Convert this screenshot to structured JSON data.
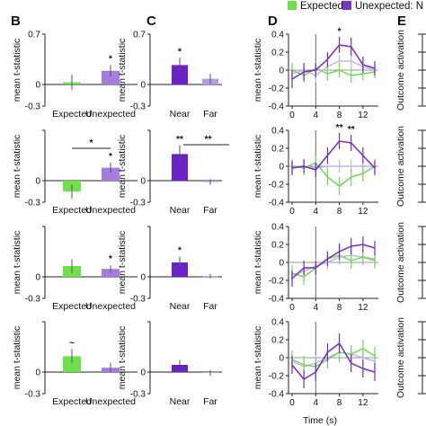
{
  "panel_letters": {
    "B": "B",
    "C": "C",
    "D": "D",
    "E": "E"
  },
  "legend": {
    "expected_label": "Expected",
    "unexpected_label": "Unexpected: N",
    "expected_color": "#6ee04a",
    "unexpected_color": "#7a35c8"
  },
  "colors": {
    "expected": "#6ee04a",
    "unexpected_light": "#a57ce0",
    "near": "#6a22c8",
    "far": "#b79be6",
    "dark_line": "#6f2fc3",
    "light_line": "#c6b3ea",
    "green_line": "#72d65a",
    "error": "#555555"
  },
  "y_axis_label_bar": "mean t-statistic",
  "y_axis_label_outcome": "Outcome activation",
  "time_axis_label": "Time (s)",
  "chart_data": [
    {
      "type": "bar",
      "panel": "B",
      "row": 1,
      "categories": [
        "Expected",
        "Unexpected"
      ],
      "values": [
        0.03,
        0.19
      ],
      "errors": [
        0.11,
        0.08
      ],
      "ylim": [
        -0.3,
        0.7
      ],
      "yticks": [
        "0.7",
        "0",
        "-0.3"
      ],
      "stars": [
        "",
        "*"
      ],
      "bracket": ""
    },
    {
      "type": "bar",
      "panel": "B",
      "row": 2,
      "categories": [
        "Expected",
        "Unexpected"
      ],
      "values": [
        -0.15,
        0.18
      ],
      "errors": [
        0.1,
        0.07
      ],
      "ylim": [
        -0.3,
        0.7
      ],
      "yticks": [
        "",
        "0",
        "-0.3"
      ],
      "stars": [
        "",
        "*"
      ],
      "bracket": "*"
    },
    {
      "type": "bar",
      "panel": "B",
      "row": 3,
      "categories": [
        "Expected",
        "Unexpected"
      ],
      "values": [
        0.15,
        0.11
      ],
      "errors": [
        0.09,
        0.05
      ],
      "ylim": [
        -0.3,
        0.7
      ],
      "yticks": [
        "",
        "0",
        "-0.3"
      ],
      "stars": [
        "",
        "*"
      ],
      "bracket": ""
    },
    {
      "type": "bar",
      "panel": "B",
      "row": 4,
      "categories": [
        "Expected",
        "Unexpected"
      ],
      "values": [
        0.22,
        0.06
      ],
      "errors": [
        0.1,
        0.07
      ],
      "ylim": [
        -0.3,
        0.7
      ],
      "yticks": [
        "",
        "0",
        "-0.3"
      ],
      "stars": [
        "~",
        ""
      ],
      "bracket": ""
    },
    {
      "type": "bar",
      "panel": "C",
      "row": 1,
      "categories": [
        "Near",
        "Far"
      ],
      "values": [
        0.27,
        0.08
      ],
      "errors": [
        0.1,
        0.07
      ],
      "ylim": [
        -0.3,
        0.7
      ],
      "yticks": [
        "0.7",
        "0",
        "-0.3"
      ],
      "stars": [
        "*",
        ""
      ],
      "bracket": ""
    },
    {
      "type": "bar",
      "panel": "C",
      "row": 2,
      "categories": [
        "Near",
        "Far"
      ],
      "values": [
        0.37,
        -0.02
      ],
      "errors": [
        0.12,
        0.04
      ],
      "ylim": [
        -0.3,
        0.7
      ],
      "yticks": [
        "",
        "0",
        "-0.3"
      ],
      "stars": [
        "**",
        ""
      ],
      "bracket": "**"
    },
    {
      "type": "bar",
      "panel": "C",
      "row": 3,
      "categories": [
        "Near",
        "Far"
      ],
      "values": [
        0.2,
        0.01
      ],
      "errors": [
        0.08,
        0.03
      ],
      "ylim": [
        -0.3,
        0.7
      ],
      "yticks": [
        "",
        "0",
        "-0.3"
      ],
      "stars": [
        "*",
        ""
      ],
      "bracket": ""
    },
    {
      "type": "bar",
      "panel": "C",
      "row": 4,
      "categories": [
        "Near",
        "Far"
      ],
      "values": [
        0.1,
        -0.01
      ],
      "errors": [
        0.07,
        0.04
      ],
      "ylim": [
        -0.3,
        0.7
      ],
      "yticks": [
        "",
        "0",
        "-0.3"
      ],
      "stars": [
        "",
        ""
      ],
      "bracket": ""
    },
    {
      "type": "line",
      "panel": "D",
      "row": 1,
      "x": [
        0,
        2,
        4,
        6,
        8,
        10,
        12,
        14
      ],
      "ylim": [
        -0.4,
        0.4
      ],
      "xticks": [
        "0",
        "4",
        "8",
        "12"
      ],
      "yticks": [
        "0.4",
        "0.2",
        "0",
        "-0.2",
        "-0.4"
      ],
      "series": [
        {
          "values": [
            -0.1,
            -0.02,
            0.0,
            0.12,
            0.28,
            0.26,
            0.06,
            0.02
          ],
          "errors": [
            0.1,
            0.1,
            0.08,
            0.08,
            0.09,
            0.1,
            0.09,
            0.08
          ]
        },
        {
          "values": [
            -0.04,
            0.0,
            -0.06,
            0.04,
            0.1,
            0.1,
            0.04,
            0.0
          ],
          "errors": [
            0.08,
            0.08,
            0.08,
            0.07,
            0.07,
            0.08,
            0.08,
            0.07
          ]
        },
        {
          "values": [
            0.0,
            -0.06,
            0.02,
            -0.04,
            0.0,
            -0.06,
            -0.04,
            -0.02
          ],
          "errors": [
            0.08,
            0.08,
            0.07,
            0.08,
            0.08,
            0.08,
            0.07,
            0.07
          ]
        }
      ],
      "stars": [
        {
          "x": 8,
          "label": "*"
        }
      ]
    },
    {
      "type": "line",
      "panel": "D",
      "row": 2,
      "x": [
        0,
        2,
        4,
        6,
        8,
        10,
        12,
        14
      ],
      "ylim": [
        -0.4,
        0.4
      ],
      "xticks": [
        "0",
        "4",
        "8",
        "12"
      ],
      "yticks": [
        "0.4",
        "0.2",
        "0",
        "-0.2",
        "-0.4"
      ],
      "series": [
        {
          "values": [
            -0.02,
            0.0,
            -0.04,
            0.12,
            0.28,
            0.26,
            0.12,
            -0.02
          ],
          "errors": [
            0.08,
            0.08,
            0.08,
            0.09,
            0.09,
            0.09,
            0.09,
            0.08
          ]
        },
        {
          "values": [
            0.0,
            0.0,
            -0.02,
            0.0,
            0.0,
            0.0,
            0.0,
            0.0
          ],
          "errors": [
            0.07,
            0.07,
            0.07,
            0.07,
            0.07,
            0.07,
            0.07,
            0.07
          ]
        },
        {
          "values": [
            0.0,
            -0.02,
            0.04,
            -0.12,
            -0.22,
            -0.12,
            -0.08,
            0.0
          ],
          "errors": [
            0.08,
            0.08,
            0.08,
            0.09,
            0.1,
            0.1,
            0.09,
            0.08
          ]
        }
      ],
      "stars": [
        {
          "x": 8,
          "label": "**"
        },
        {
          "x": 10,
          "label": "**"
        }
      ]
    },
    {
      "type": "line",
      "panel": "D",
      "row": 3,
      "x": [
        0,
        2,
        4,
        6,
        8,
        10,
        12,
        14
      ],
      "ylim": [
        -0.4,
        0.4
      ],
      "xticks": [
        "0",
        "4",
        "8",
        "12"
      ],
      "yticks": [
        "0.4",
        "0.2",
        "0",
        "-0.2",
        "-0.4"
      ],
      "series": [
        {
          "values": [
            -0.18,
            -0.06,
            -0.06,
            0.04,
            0.12,
            0.18,
            0.2,
            0.16
          ],
          "errors": [
            0.09,
            0.08,
            0.08,
            0.08,
            0.09,
            0.09,
            0.09,
            0.08
          ]
        },
        {
          "values": [
            -0.14,
            -0.1,
            -0.04,
            0.0,
            0.06,
            0.08,
            0.06,
            0.04
          ],
          "errors": [
            0.08,
            0.08,
            0.08,
            0.08,
            0.08,
            0.08,
            0.08,
            0.08
          ]
        },
        {
          "values": [
            -0.12,
            -0.16,
            -0.06,
            0.04,
            0.08,
            0.02,
            0.06,
            0.02
          ],
          "errors": [
            0.09,
            0.09,
            0.09,
            0.09,
            0.1,
            0.09,
            0.09,
            0.09
          ]
        }
      ],
      "stars": []
    },
    {
      "type": "line",
      "panel": "D",
      "row": 4,
      "x": [
        0,
        2,
        4,
        6,
        8,
        10,
        12,
        14
      ],
      "ylim": [
        -0.4,
        0.4
      ],
      "xticks": [
        "0",
        "4",
        "8",
        "12"
      ],
      "yticks": [
        "0.4",
        "0.2",
        "0",
        "-0.2",
        "-0.4"
      ],
      "series": [
        {
          "values": [
            -0.08,
            -0.24,
            -0.16,
            0.06,
            0.16,
            -0.06,
            -0.12,
            -0.16
          ],
          "errors": [
            0.1,
            0.1,
            0.1,
            0.1,
            0.11,
            0.1,
            0.1,
            0.1
          ]
        },
        {
          "values": [
            -0.04,
            -0.1,
            -0.06,
            0.0,
            0.06,
            0.04,
            0.0,
            -0.04
          ],
          "errors": [
            0.09,
            0.09,
            0.09,
            0.09,
            0.09,
            0.09,
            0.09,
            0.09
          ]
        },
        {
          "values": [
            -0.02,
            -0.08,
            -0.1,
            -0.02,
            0.06,
            0.04,
            0.1,
            0.02
          ],
          "errors": [
            0.1,
            0.1,
            0.1,
            0.1,
            0.11,
            0.1,
            0.1,
            0.1
          ]
        }
      ],
      "stars": []
    }
  ]
}
